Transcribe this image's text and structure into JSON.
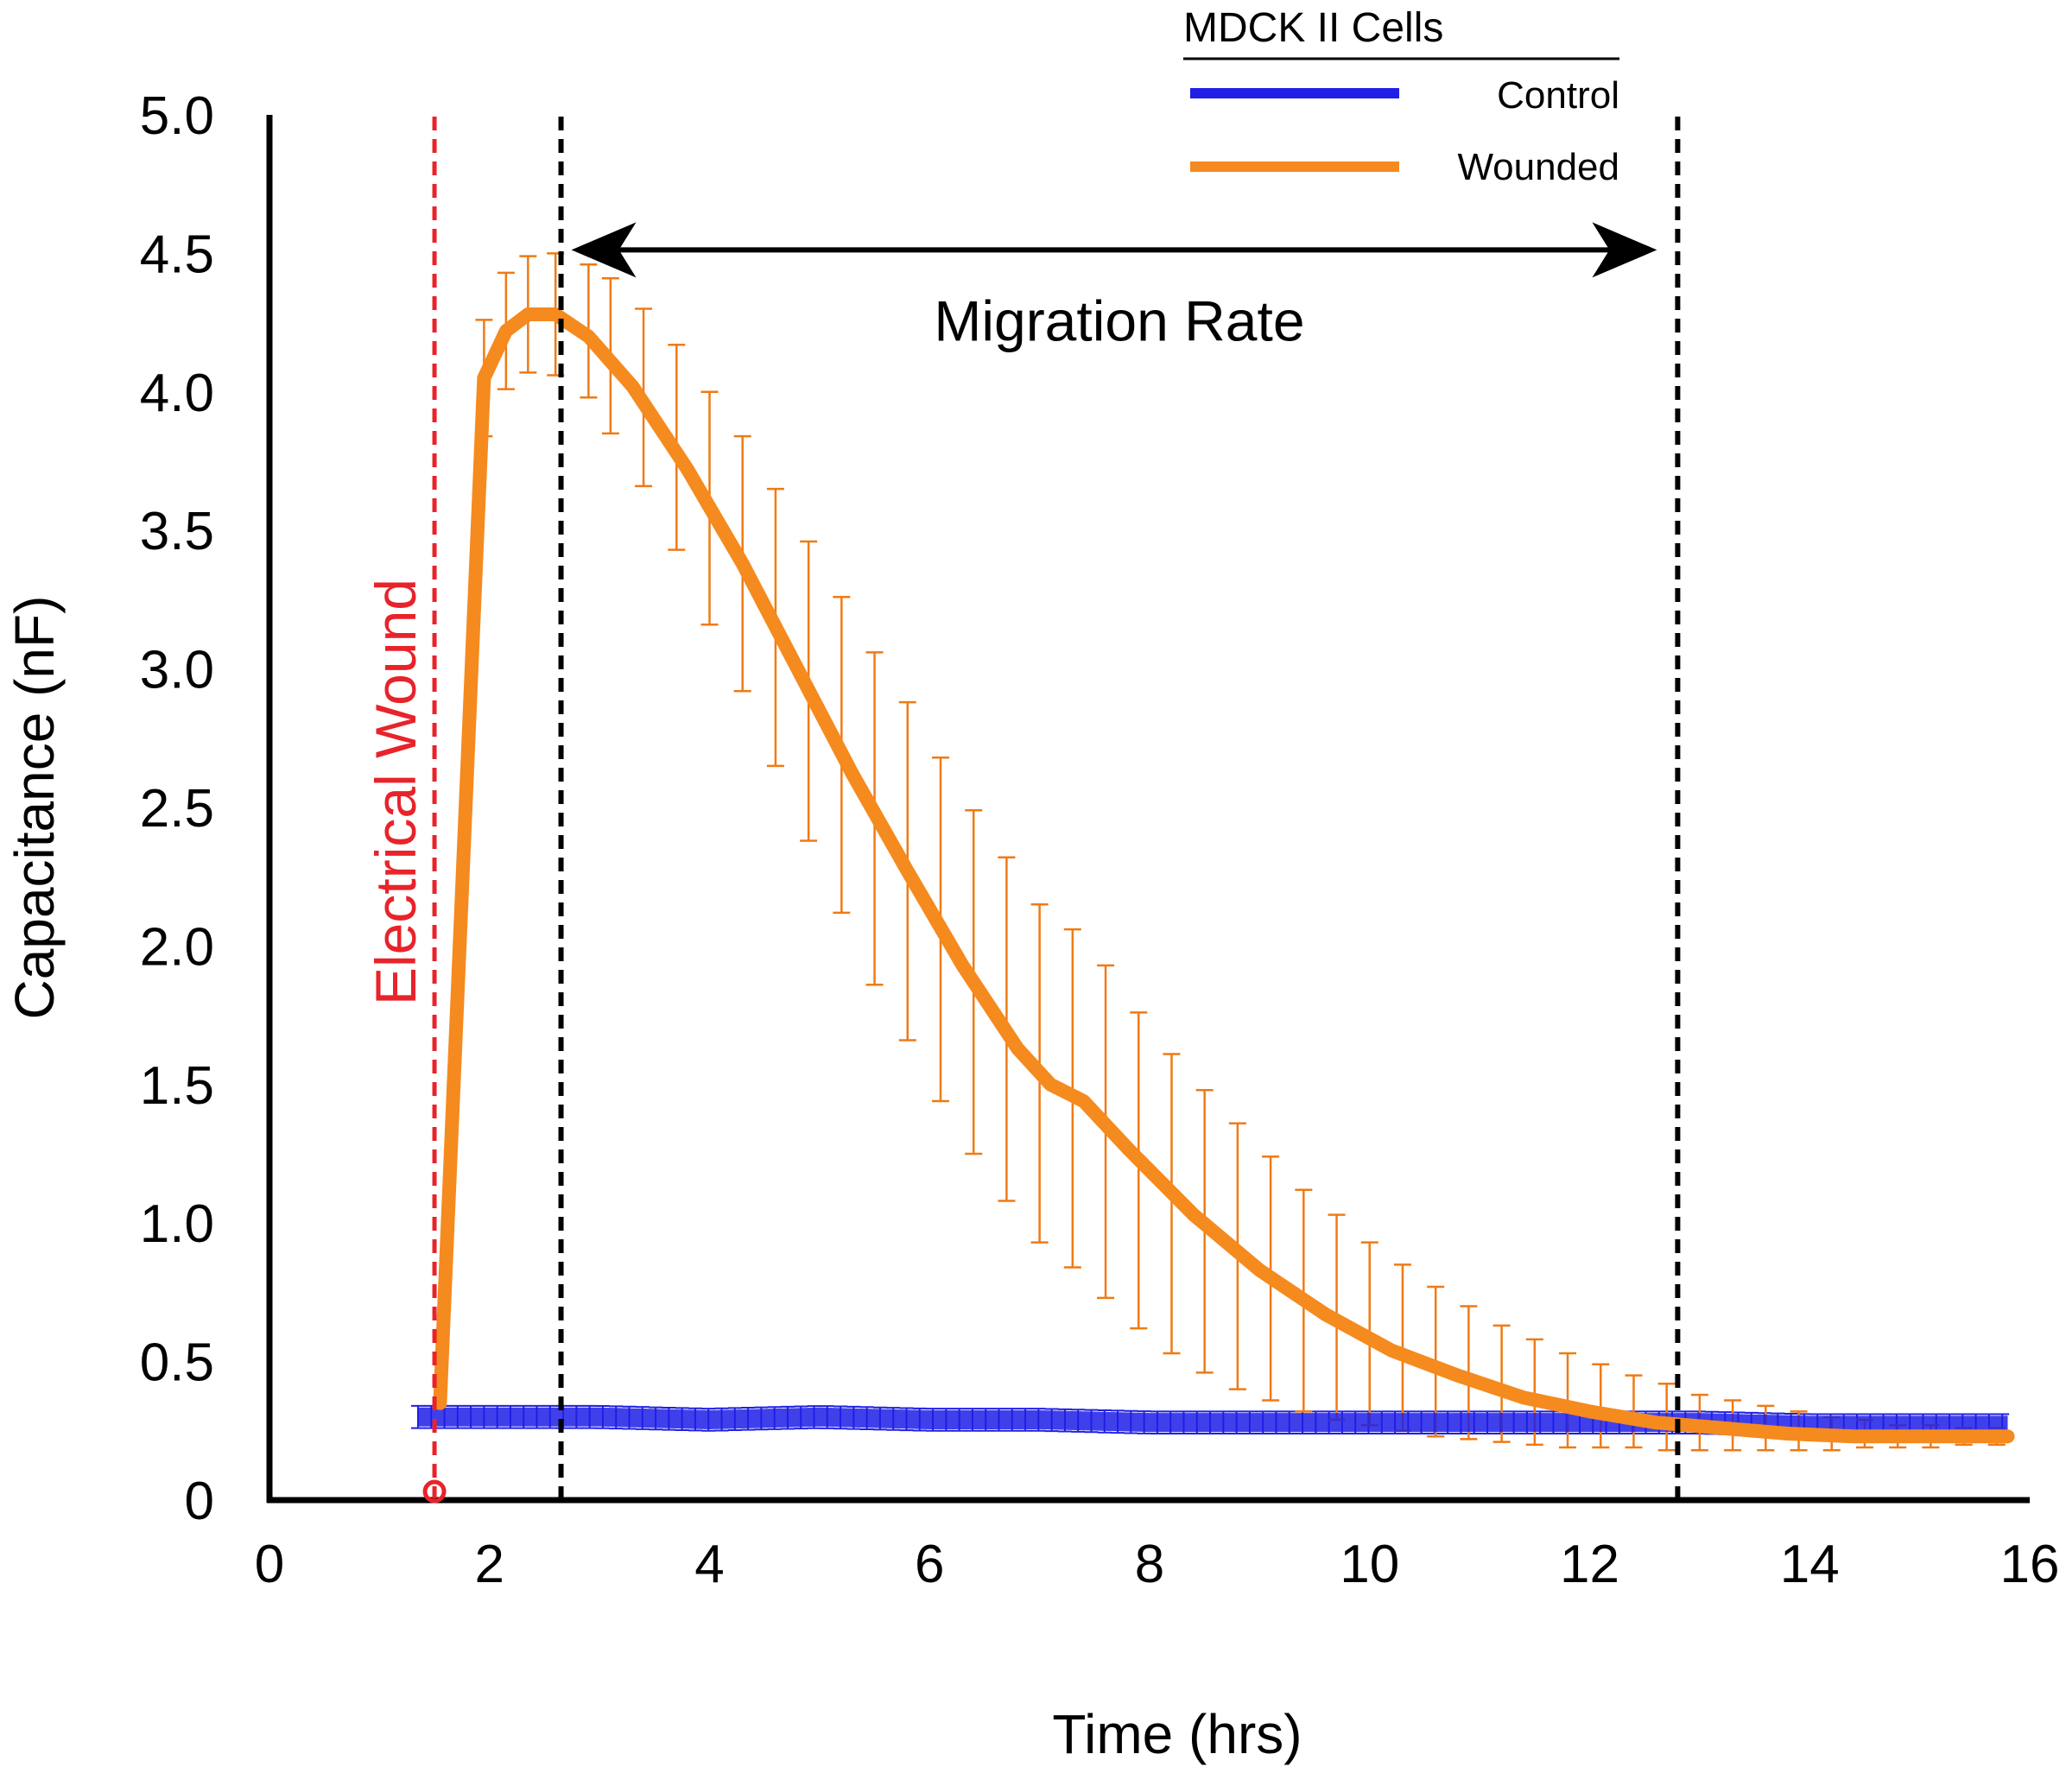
{
  "chart_data": {
    "type": "line",
    "title": "",
    "xlabel": "Time (hrs)",
    "ylabel": "Capacitance (nF)",
    "xlim": [
      0,
      16
    ],
    "ylim": [
      0,
      5
    ],
    "x_ticks": [
      0,
      2,
      4,
      6,
      8,
      10,
      12,
      14,
      16
    ],
    "x_tick_labels": [
      "0",
      "2",
      "4",
      "6",
      "8",
      "10",
      "12",
      "14",
      "16"
    ],
    "y_ticks": [
      0,
      0.5,
      1,
      1.5,
      2,
      2.5,
      3,
      3.5,
      4,
      4.5,
      5
    ],
    "y_tick_labels": [
      "0",
      "0.5",
      "1.0",
      "1.5",
      "2.0",
      "2.5",
      "3.0",
      "3.5",
      "4.0",
      "4.5",
      "5.0"
    ],
    "grid": false,
    "legend": {
      "title": "MDCK II Cells",
      "position": "top-right",
      "entries": [
        "Control",
        "Wounded"
      ]
    },
    "series": [
      {
        "name": "Control",
        "color": "#1f1fe6",
        "x": [
          1.35,
          2,
          3,
          4,
          5,
          6,
          7,
          8,
          9,
          10,
          11,
          12,
          13,
          14,
          15,
          15.8
        ],
        "y": [
          0.3,
          0.3,
          0.3,
          0.29,
          0.3,
          0.29,
          0.29,
          0.28,
          0.28,
          0.28,
          0.28,
          0.28,
          0.28,
          0.27,
          0.27,
          0.27
        ],
        "err": 0.04
      },
      {
        "name": "Wounded",
        "color": "#f58a1f",
        "error_color": "#f07a14",
        "x": [
          1.55,
          1.95,
          2.15,
          2.35,
          2.6,
          2.9,
          3.3,
          3.8,
          4.3,
          4.8,
          5.3,
          5.8,
          6.3,
          6.8,
          7.1,
          7.4,
          7.8,
          8.4,
          9.0,
          9.6,
          10.2,
          10.8,
          11.4,
          12.0,
          12.6,
          13.2,
          13.8,
          14.4,
          15.0,
          15.8
        ],
        "y": [
          0.35,
          4.05,
          4.22,
          4.28,
          4.28,
          4.2,
          4.02,
          3.72,
          3.38,
          3.0,
          2.62,
          2.27,
          1.93,
          1.63,
          1.5,
          1.44,
          1.27,
          1.03,
          0.83,
          0.67,
          0.54,
          0.45,
          0.37,
          0.32,
          0.28,
          0.26,
          0.24,
          0.23,
          0.23,
          0.23
        ],
        "err_x": [
          1.95,
          2.15,
          2.35,
          2.6,
          2.9,
          3.1,
          3.4,
          3.7,
          4.0,
          4.3,
          4.6,
          4.9,
          5.2,
          5.5,
          5.8,
          6.1,
          6.4,
          6.7,
          7.0,
          7.3,
          7.6,
          7.9,
          8.2,
          8.5,
          8.8,
          9.1,
          9.4,
          9.7,
          10.0,
          10.3,
          10.6,
          10.9,
          11.2,
          11.5,
          11.8,
          12.1,
          12.4,
          12.7,
          13.0,
          13.3,
          13.6,
          13.9,
          14.2,
          14.5,
          14.8,
          15.1,
          15.4,
          15.7
        ],
        "err_y": [
          4.05,
          4.22,
          4.28,
          4.28,
          4.22,
          4.13,
          3.98,
          3.8,
          3.58,
          3.38,
          3.15,
          2.92,
          2.69,
          2.46,
          2.27,
          2.06,
          1.87,
          1.7,
          1.54,
          1.45,
          1.33,
          1.19,
          1.07,
          0.97,
          0.88,
          0.8,
          0.72,
          0.66,
          0.6,
          0.55,
          0.5,
          0.46,
          0.42,
          0.39,
          0.36,
          0.34,
          0.32,
          0.3,
          0.28,
          0.27,
          0.26,
          0.25,
          0.24,
          0.24,
          0.23,
          0.23,
          0.23,
          0.23
        ],
        "err_size": [
          0.21,
          0.21,
          0.21,
          0.22,
          0.24,
          0.28,
          0.32,
          0.37,
          0.42,
          0.46,
          0.5,
          0.54,
          0.57,
          0.6,
          0.61,
          0.62,
          0.62,
          0.62,
          0.61,
          0.61,
          0.6,
          0.57,
          0.54,
          0.51,
          0.48,
          0.44,
          0.4,
          0.37,
          0.33,
          0.3,
          0.27,
          0.24,
          0.21,
          0.19,
          0.17,
          0.15,
          0.13,
          0.12,
          0.1,
          0.09,
          0.08,
          0.07,
          0.06,
          0.05,
          0.04,
          0.04,
          0.03,
          0.03
        ]
      }
    ],
    "annotations": {
      "wound_marker": {
        "label": "Electrical Wound",
        "x": 1.5,
        "color": "#e8232a"
      },
      "migration_start_x": 2.65,
      "migration_end_x": 12.8,
      "migration_label": "Migration Rate",
      "migration_arrow_y": 4.5
    }
  }
}
